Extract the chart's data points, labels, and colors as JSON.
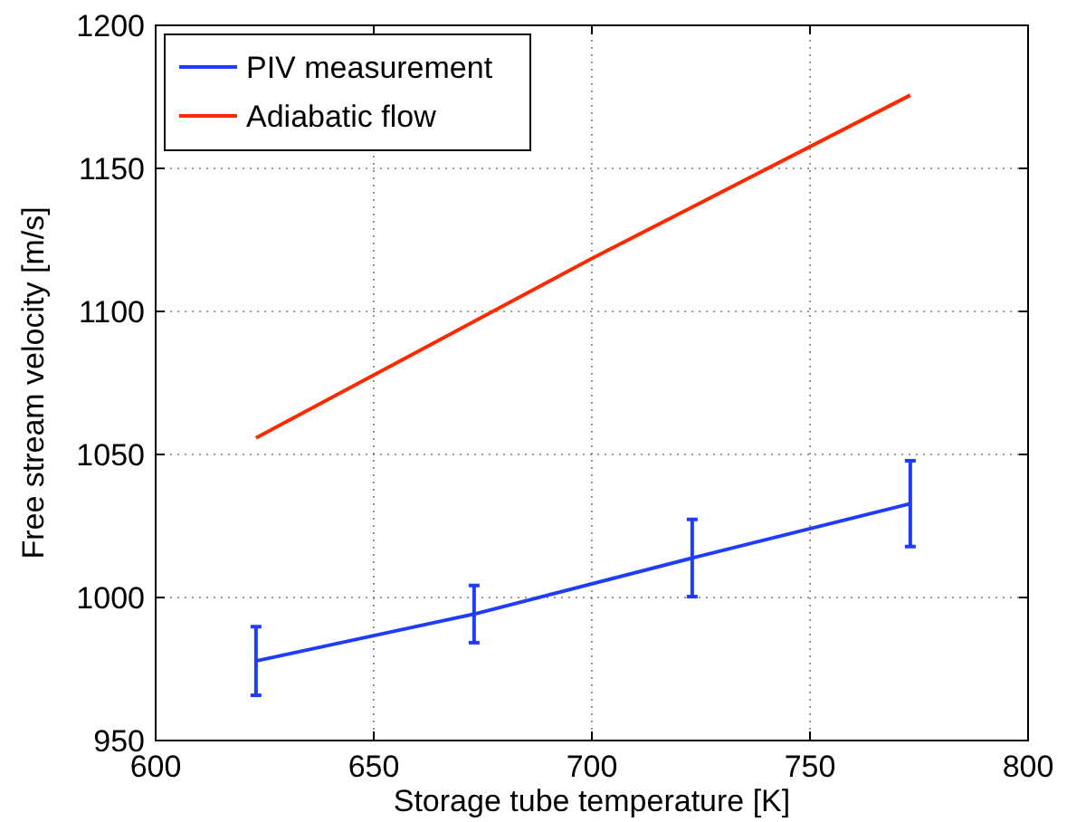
{
  "chart_data": {
    "type": "line",
    "xlabel": "Storage tube temperature [K]",
    "ylabel": "Free stream velocity [m/s]",
    "xlim": [
      600,
      800
    ],
    "xticks": [
      600,
      650,
      700,
      750,
      800
    ],
    "ylim": [
      950,
      1200
    ],
    "yticks": [
      950,
      1000,
      1050,
      1100,
      1150,
      1200
    ],
    "grid": true,
    "legend": "top left",
    "line_style": "solid",
    "marker": "none",
    "series": [
      {
        "name": "PIV measurement",
        "color": "#1f3cff",
        "x": [
          623,
          673,
          723,
          773
        ],
        "values": [
          977.8,
          994.2,
          1013.8,
          1032.8
        ],
        "errors": [
          12,
          10,
          13.5,
          15
        ]
      },
      {
        "name": "Adiabatic flow",
        "color": "#ff2a00",
        "x": [
          623,
          700,
          773
        ],
        "values": [
          1055.8,
          1118.5,
          1175.6
        ]
      }
    ]
  }
}
